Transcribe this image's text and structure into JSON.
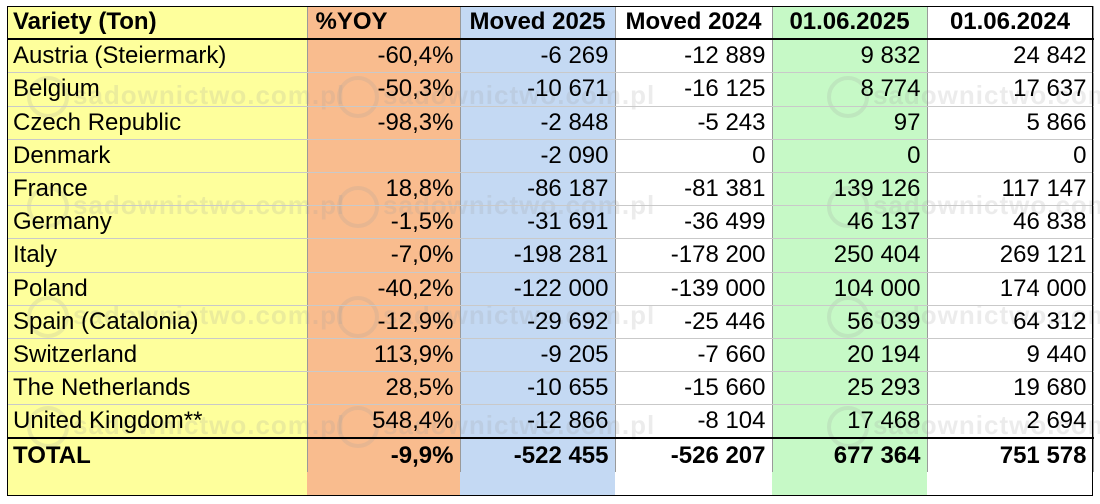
{
  "watermark": "sadownictwo.com.pl",
  "colors": {
    "variety_col": "#feff9c",
    "yoy_col": "#f9bc8e",
    "moved2025_col": "#c4d9f3",
    "date2025_col": "#c6f9c6"
  },
  "headers": [
    "Variety (Ton)",
    "%YOY",
    "Moved 2025",
    "Moved 2024",
    "01.06.2025",
    "01.06.2024"
  ],
  "rows": [
    [
      "Austria (Steiermark)",
      "-60,4%",
      "-6 269",
      "-12 889",
      "9 832",
      "24 842"
    ],
    [
      "Belgium",
      "-50,3%",
      "-10 671",
      "-16 125",
      "8 774",
      "17 637"
    ],
    [
      "Czech Republic",
      "-98,3%",
      "-2 848",
      "-5 243",
      "97",
      "5 866"
    ],
    [
      "Denmark",
      "",
      "-2 090",
      "0",
      "0",
      "0"
    ],
    [
      "France",
      "18,8%",
      "-86 187",
      "-81 381",
      "139 126",
      "117 147"
    ],
    [
      "Germany",
      "-1,5%",
      "-31 691",
      "-36 499",
      "46 137",
      "46 838"
    ],
    [
      "Italy",
      "-7,0%",
      "-198 281",
      "-178 200",
      "250 404",
      "269 121"
    ],
    [
      "Poland",
      "-40,2%",
      "-122 000",
      "-139 000",
      "104 000",
      "174 000"
    ],
    [
      "Spain (Catalonia)",
      "-12,9%",
      "-29 692",
      "-25 446",
      "56 039",
      "64 312"
    ],
    [
      "Switzerland",
      "113,9%",
      "-9 205",
      "-7 660",
      "20 194",
      "9 440"
    ],
    [
      "The Netherlands",
      "28,5%",
      "-10 655",
      "-15 660",
      "25 293",
      "19 680"
    ],
    [
      "United Kingdom**",
      "548,4%",
      "-12 866",
      "-8 104",
      "17 468",
      "2 694"
    ]
  ],
  "total": [
    "TOTAL",
    "-9,9%",
    "-522 455",
    "-526 207",
    "677 364",
    "751 578"
  ]
}
